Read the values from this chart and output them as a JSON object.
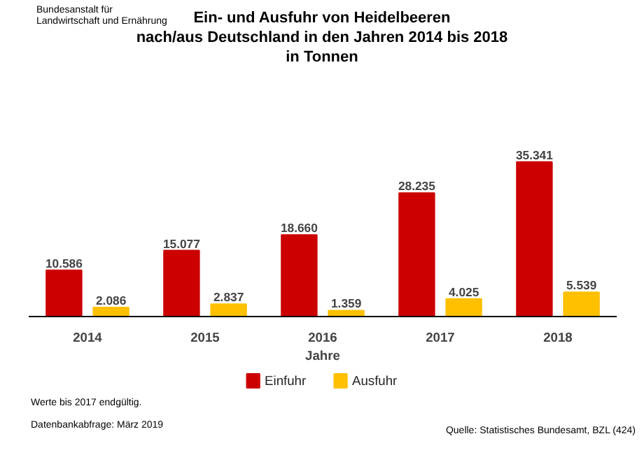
{
  "chart_data": {
    "type": "bar",
    "title": "Ein- und Ausfuhr von Heidelbeeren\nnach/aus Deutschland in den Jahren 2014 bis 2018\nin Tonnen",
    "xlabel": "Jahre",
    "categories": [
      "2014",
      "2015",
      "2016",
      "2017",
      "2018"
    ],
    "series": [
      {
        "name": "Einfuhr",
        "color": "#cc0000",
        "values": [
          10586,
          15077,
          18660,
          28235,
          35341
        ],
        "value_labels": [
          "10.586",
          "15.077",
          "18.660",
          "28.235",
          "35.341"
        ]
      },
      {
        "name": "Ausfuhr",
        "color": "#ffc000",
        "values": [
          2086,
          2837,
          1359,
          4025,
          5539
        ],
        "value_labels": [
          "2.086",
          "2.837",
          "1.359",
          "4.025",
          "5.539"
        ]
      }
    ],
    "legend": "bottom",
    "grid": false,
    "annotations": [
      "Bundesanstalt für\nLandwirtschaft und Ernährung",
      "Werte bis 2017 endgültig.",
      "Datenbankabfrage: März 2019",
      "Quelle: Statistisches Bundesamt, BZL (424)"
    ]
  }
}
